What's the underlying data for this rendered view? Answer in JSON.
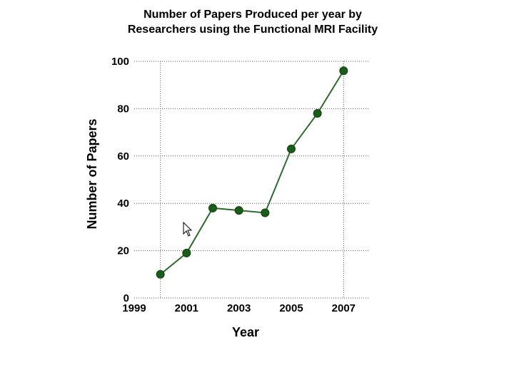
{
  "chart_data": {
    "type": "line",
    "title_line1": "Number of Papers Produced per year by",
    "title_line2": "Researchers using the Functional MRI Facility",
    "xlabel": "Year",
    "ylabel": "Number of Papers",
    "x": [
      2000,
      2001,
      2002,
      2003,
      2004,
      2005,
      2006,
      2007
    ],
    "y": [
      10,
      19,
      38,
      37,
      36,
      63,
      78,
      96
    ],
    "xlim": [
      1999,
      2008
    ],
    "ylim": [
      0,
      100
    ],
    "xticks": [
      "1999",
      "2001",
      "2003",
      "2005",
      "2007"
    ],
    "yticks": [
      "0",
      "20",
      "40",
      "60",
      "80",
      "100"
    ],
    "grid": "dotted",
    "line_color": "#2e6b2e",
    "marker_color": "#1a5c1a"
  }
}
